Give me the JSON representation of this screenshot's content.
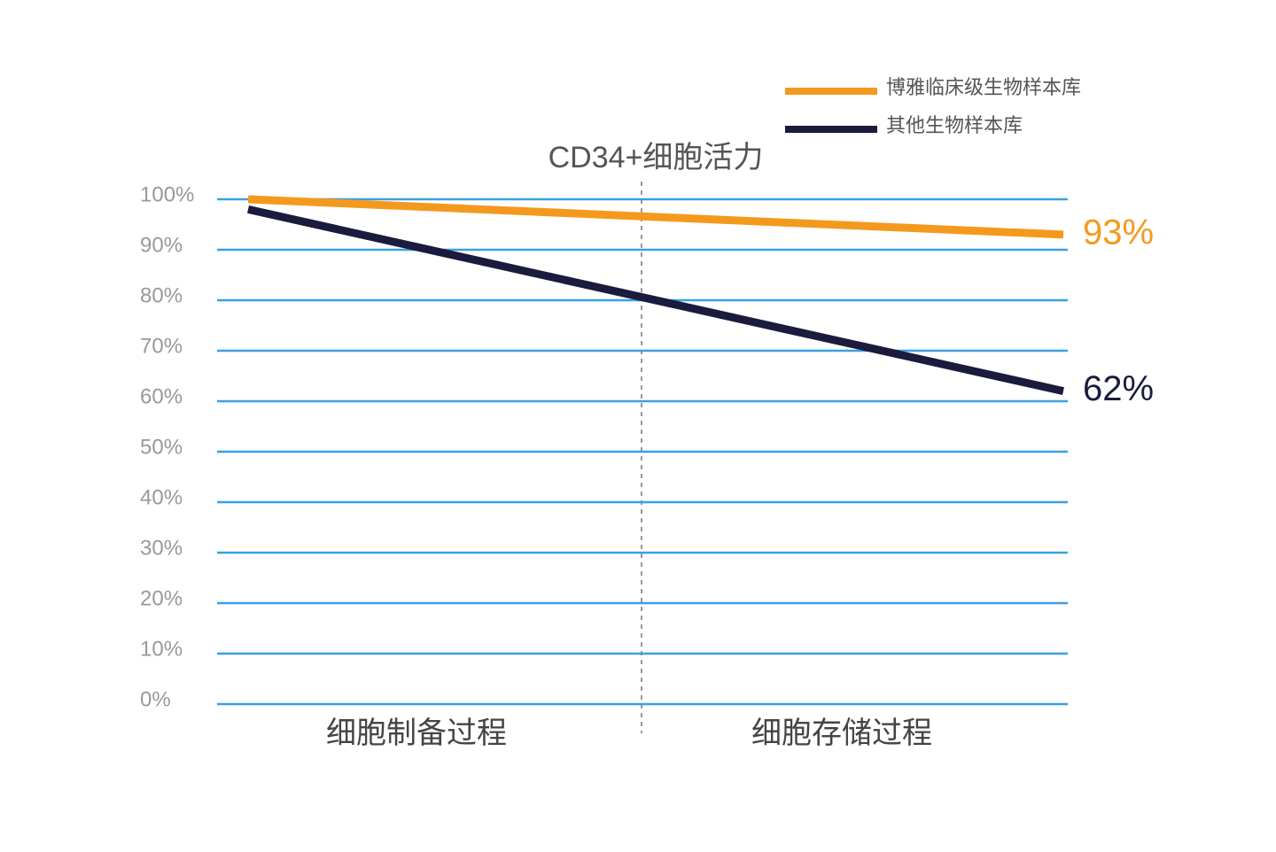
{
  "chart_data": {
    "type": "line",
    "title": "CD34+细胞活力",
    "categories": [
      "细胞制备过程",
      "细胞存储过程"
    ],
    "series": [
      {
        "name": "博雅临床级生物样本库",
        "color": "#f39a1e",
        "values": [
          100,
          93
        ],
        "value_labels": [
          null,
          "93%"
        ]
      },
      {
        "name": "其他生物样本库",
        "color": "#1b1b3d",
        "values": [
          98,
          62
        ],
        "value_labels": [
          null,
          "62%"
        ]
      }
    ],
    "ylim": [
      0,
      100
    ],
    "yticks": [
      {
        "value": 0,
        "label": "0%"
      },
      {
        "value": 10,
        "label": "10%"
      },
      {
        "value": 20,
        "label": "20%"
      },
      {
        "value": 30,
        "label": "30%"
      },
      {
        "value": 40,
        "label": "40%"
      },
      {
        "value": 50,
        "label": "50%"
      },
      {
        "value": 60,
        "label": "60%"
      },
      {
        "value": 70,
        "label": "70%"
      },
      {
        "value": 80,
        "label": "80%"
      },
      {
        "value": 90,
        "label": "90%"
      },
      {
        "value": 100,
        "label": "100%"
      }
    ],
    "grid": true,
    "grid_color": "#3aa0e0",
    "legend": "top-right"
  }
}
